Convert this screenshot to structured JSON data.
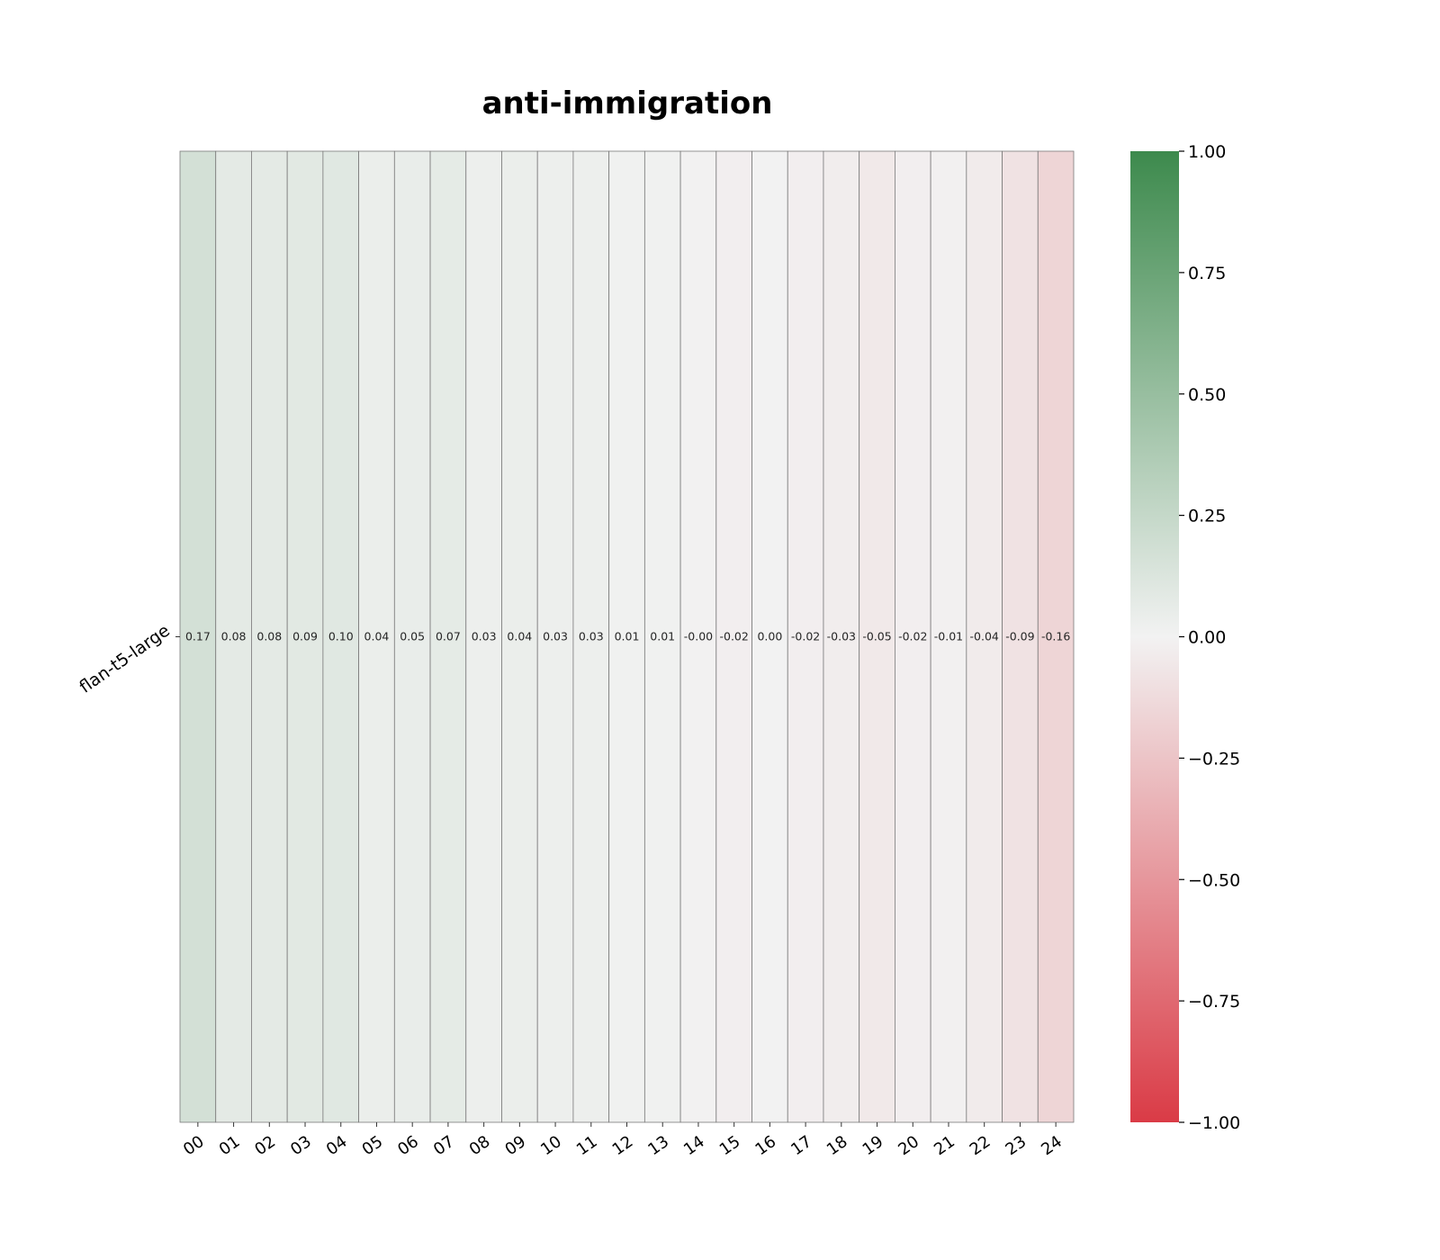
{
  "chart_data": {
    "type": "heatmap",
    "title": "anti-immigration",
    "rows": [
      "flan-t5-large"
    ],
    "columns": [
      "00",
      "01",
      "02",
      "03",
      "04",
      "05",
      "06",
      "07",
      "08",
      "09",
      "10",
      "11",
      "12",
      "13",
      "14",
      "15",
      "16",
      "17",
      "18",
      "19",
      "20",
      "21",
      "22",
      "23",
      "24"
    ],
    "values": [
      [
        0.17,
        0.08,
        0.08,
        0.09,
        0.1,
        0.04,
        0.05,
        0.07,
        0.03,
        0.04,
        0.03,
        0.03,
        0.01,
        0.01,
        -0.004,
        -0.02,
        0.0,
        -0.02,
        -0.03,
        -0.05,
        -0.02,
        -0.01,
        -0.04,
        -0.09,
        -0.16
      ]
    ],
    "cell_labels": [
      [
        "0.17",
        "0.08",
        "0.08",
        "0.09",
        "0.10",
        "0.04",
        "0.05",
        "0.07",
        "0.03",
        "0.04",
        "0.03",
        "0.03",
        "0.01",
        "0.01",
        "-0.00",
        "-0.02",
        "0.00",
        "-0.02",
        "-0.03",
        "-0.05",
        "-0.02",
        "-0.01",
        "-0.04",
        "-0.09",
        "-0.16"
      ]
    ],
    "colorbar": {
      "min": -1.0,
      "max": 1.0,
      "ticks": [
        1.0,
        0.75,
        0.5,
        0.25,
        0.0,
        -0.25,
        -0.5,
        -0.75,
        -1.0
      ],
      "tick_labels": [
        "1.00",
        "0.75",
        "0.50",
        "0.25",
        "0.00",
        "−0.25",
        "−0.50",
        "−0.75",
        "−1.00"
      ],
      "color_low": "#da3b46",
      "color_mid": "#f2f2f2",
      "color_high": "#3d8a4d"
    },
    "grid": true
  }
}
